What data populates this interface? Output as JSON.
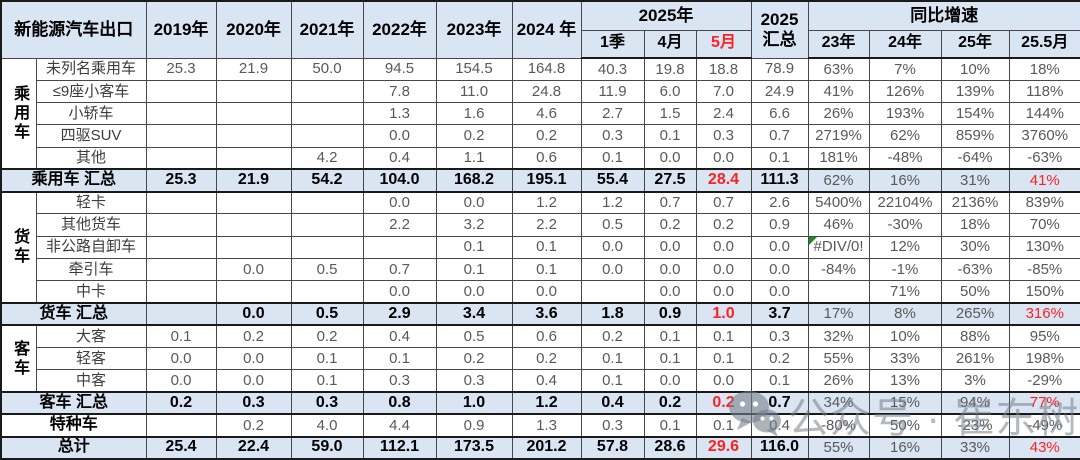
{
  "table": {
    "title": "新能源汽车出口",
    "year_headers": [
      "2019年",
      "2020年",
      "2021年",
      "2022年",
      "2023年",
      "2024 年"
    ],
    "group_2025": {
      "label": "2025年",
      "sub": [
        "1季",
        "4月",
        "5月"
      ]
    },
    "total_2025": {
      "line1": "2025",
      "line2": "汇总"
    },
    "yoy": {
      "label": "同比增速",
      "sub": [
        "23年",
        "24年",
        "25年",
        "25.5月"
      ]
    },
    "rows": [
      {
        "group": {
          "label": "乘用车",
          "span": 5
        },
        "label": "未列名乘用车",
        "style": "data",
        "values": [
          "25.3",
          "21.9",
          "50.0",
          "94.5",
          "154.5",
          "164.8",
          "40.3",
          "19.8",
          "18.8",
          "78.9",
          "63%",
          "7%",
          "10%",
          "18%"
        ]
      },
      {
        "label": "≤9座小客车",
        "style": "data",
        "values": [
          "",
          "",
          "",
          "7.8",
          "11.0",
          "24.8",
          "11.9",
          "6.0",
          "7.0",
          "24.9",
          "41%",
          "126%",
          "139%",
          "118%"
        ]
      },
      {
        "label": "小轿车",
        "style": "data",
        "values": [
          "",
          "",
          "",
          "1.3",
          "1.6",
          "4.6",
          "2.7",
          "1.5",
          "2.4",
          "6.6",
          "26%",
          "193%",
          "154%",
          "144%"
        ]
      },
      {
        "label": "四驱SUV",
        "style": "data",
        "values": [
          "",
          "",
          "",
          "0.0",
          "0.2",
          "0.2",
          "0.3",
          "0.1",
          "0.3",
          "0.7",
          "2719%",
          "62%",
          "859%",
          "3760%"
        ]
      },
      {
        "label": "其他",
        "style": "data",
        "values": [
          "",
          "",
          "4.2",
          "0.4",
          "1.1",
          "0.6",
          "0.1",
          "0.0",
          "0.0",
          "0.1",
          "181%",
          "-48%",
          "-64%",
          "-63%"
        ]
      },
      {
        "label": "乘用车 汇总",
        "style": "summary",
        "wide": true,
        "values": [
          "25.3",
          "21.9",
          "54.2",
          "104.0",
          "168.2",
          "195.1",
          "55.4",
          "27.5",
          "28.4",
          "111.3",
          "62%",
          "16%",
          "31%",
          "41%"
        ]
      },
      {
        "group": {
          "label": "货车",
          "span": 5
        },
        "label": "轻卡",
        "style": "data",
        "values": [
          "",
          "",
          "",
          "0.0",
          "0.0",
          "1.2",
          "1.2",
          "0.7",
          "0.7",
          "2.6",
          "5400%",
          "22104%",
          "2136%",
          "839%"
        ]
      },
      {
        "label": "其他货车",
        "style": "data",
        "values": [
          "",
          "",
          "",
          "2.2",
          "3.2",
          "2.2",
          "0.5",
          "0.2",
          "0.2",
          "0.9",
          "46%",
          "-30%",
          "18%",
          "70%"
        ]
      },
      {
        "label": "非公路自卸车",
        "style": "data",
        "error_col": 10,
        "values": [
          "",
          "",
          "",
          "",
          "0.1",
          "0.1",
          "0.0",
          "0.0",
          "0.0",
          "0.0",
          "#DIV/0!",
          "12%",
          "30%",
          "130%"
        ]
      },
      {
        "label": "牵引车",
        "style": "data",
        "values": [
          "",
          "0.0",
          "0.5",
          "0.7",
          "0.1",
          "0.1",
          "0.0",
          "0.0",
          "0.0",
          "0.0",
          "-84%",
          "-1%",
          "-63%",
          "-85%"
        ]
      },
      {
        "label": "中卡",
        "style": "data",
        "values": [
          "",
          "",
          "",
          "0.0",
          "0.0",
          "0.0",
          "",
          "0.0",
          "0.0",
          "0.0",
          "",
          "71%",
          "50%",
          "150%"
        ]
      },
      {
        "label": "货车 汇总",
        "style": "summary",
        "wide": true,
        "values": [
          "",
          "0.0",
          "0.5",
          "2.9",
          "3.4",
          "3.6",
          "1.8",
          "0.9",
          "1.0",
          "3.7",
          "17%",
          "8%",
          "265%",
          "316%"
        ]
      },
      {
        "group": {
          "label": "客车",
          "span": 3
        },
        "label": "大客",
        "style": "data",
        "values": [
          "0.1",
          "0.2",
          "0.2",
          "0.4",
          "0.5",
          "0.6",
          "0.2",
          "0.1",
          "0.1",
          "0.3",
          "32%",
          "10%",
          "88%",
          "95%"
        ]
      },
      {
        "label": "轻客",
        "style": "data",
        "values": [
          "0.0",
          "0.0",
          "0.1",
          "0.1",
          "0.2",
          "0.2",
          "0.1",
          "0.1",
          "0.1",
          "0.2",
          "55%",
          "33%",
          "261%",
          "198%"
        ]
      },
      {
        "label": "中客",
        "style": "data",
        "values": [
          "0.0",
          "0.0",
          "0.1",
          "0.3",
          "0.3",
          "0.4",
          "0.1",
          "0.0",
          "0.0",
          "0.1",
          "26%",
          "13%",
          "3%",
          "-29%"
        ]
      },
      {
        "label": "客车 汇总",
        "style": "summary",
        "wide": true,
        "values": [
          "0.2",
          "0.3",
          "0.3",
          "0.8",
          "1.0",
          "1.2",
          "0.4",
          "0.2",
          "0.2",
          "0.7",
          "34%",
          "15%",
          "94%",
          "77%"
        ]
      },
      {
        "label": "特种车",
        "style": "special",
        "wide": true,
        "values": [
          "",
          "0.2",
          "4.0",
          "4.4",
          "0.9",
          "1.3",
          "0.3",
          "0.1",
          "0.1",
          "0.4",
          "-80%",
          "50%",
          "-23%",
          "-49%"
        ]
      },
      {
        "label": "总计",
        "style": "summary",
        "wide": true,
        "values": [
          "25.4",
          "22.4",
          "59.0",
          "112.1",
          "173.5",
          "201.2",
          "57.8",
          "28.6",
          "29.6",
          "116.0",
          "55%",
          "16%",
          "33%",
          "43%"
        ]
      }
    ]
  },
  "watermark": {
    "text": "公众号 · 崔东树",
    "icon": "wechat-icon"
  },
  "colors": {
    "header_bg": "#d9e5f2",
    "summary_bg": "#d9e5f2",
    "highlight_red": "#fb2222",
    "data_gray": "#595959",
    "border_dark": "#1a1a1a",
    "error_green": "#1f8a1f"
  }
}
